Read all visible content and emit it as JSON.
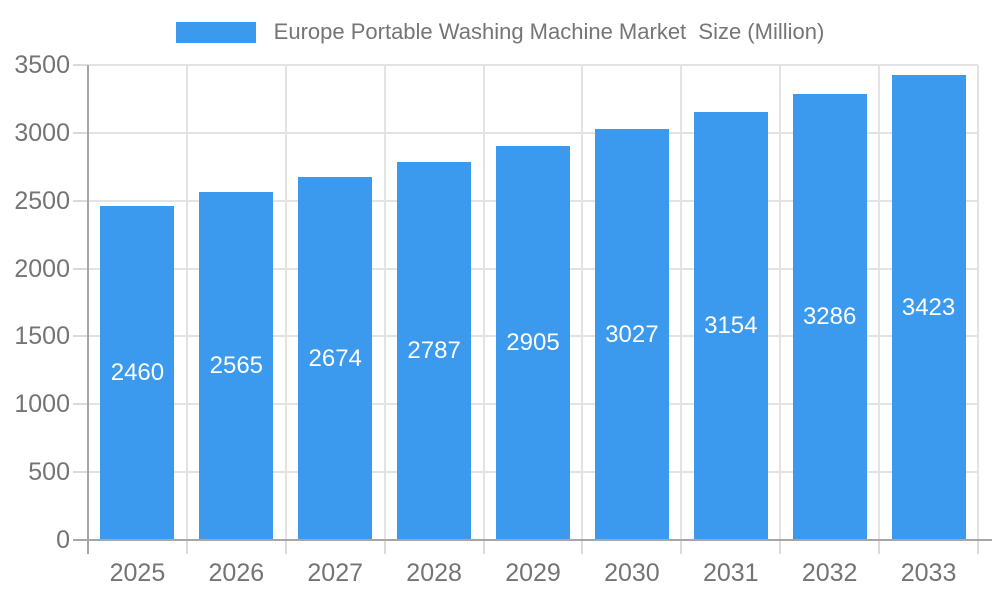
{
  "chart_data": {
    "type": "bar",
    "title": "Europe Portable Washing Machine Market  Size (Million)",
    "categories": [
      "2025",
      "2026",
      "2027",
      "2028",
      "2029",
      "2030",
      "2031",
      "2032",
      "2033"
    ],
    "values": [
      2460,
      2565,
      2674,
      2787,
      2905,
      3027,
      3154,
      3286,
      3423
    ],
    "xlabel": "",
    "ylabel": "",
    "ylim": [
      0,
      3500
    ],
    "ytick_step": 500,
    "ytick_labels": [
      "0",
      "500",
      "1000",
      "1500",
      "2000",
      "2500",
      "3000",
      "3500"
    ],
    "grid": true,
    "legend_position": "top",
    "value_labels_inside_bars": true,
    "colors": {
      "bar": "#3B99EE",
      "value_label": "#FFFFFF",
      "grid": "#E3E3E3",
      "tick": "#DADADA",
      "axis": "#A6A6A6",
      "tick_label": "#747474",
      "title": "#757575",
      "background": "#FFFFFF"
    }
  }
}
